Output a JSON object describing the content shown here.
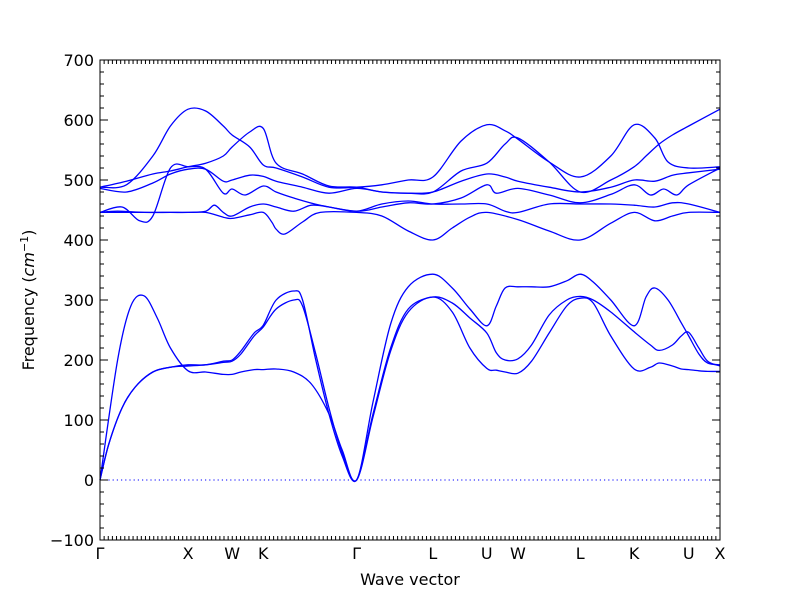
{
  "chart_data": {
    "type": "line",
    "xlabel": "Wave vector",
    "ylabel": "Frequency (",
    "ylabel_unit": "cm",
    "ylabel_exp": "−1",
    "ylabel_close": ")",
    "ylim": [
      -100,
      700
    ],
    "y_ticks": [
      -100,
      0,
      100,
      200,
      300,
      400,
      500,
      600,
      700
    ],
    "x_ticks": [
      {
        "label": "Γ",
        "x": 0.0
      },
      {
        "label": "X",
        "x": 1.0
      },
      {
        "label": "W",
        "x": 1.5
      },
      {
        "label": "K",
        "x": 1.854
      },
      {
        "label": "Γ",
        "x": 2.914
      },
      {
        "label": "L",
        "x": 3.78
      },
      {
        "label": "U",
        "x": 4.392
      },
      {
        "label": "W",
        "x": 4.746
      },
      {
        "label": "L",
        "x": 5.453
      },
      {
        "label": "K",
        "x": 6.065
      },
      {
        "label": "U",
        "x": 6.685
      },
      {
        "label": "X",
        "x": 7.04
      }
    ],
    "xlim": [
      0,
      7.04
    ],
    "zero_line": true,
    "series": [
      {
        "values": [
          [
            0,
            0
          ],
          [
            0.1,
            60
          ],
          [
            0.25,
            120
          ],
          [
            0.4,
            155
          ],
          [
            0.6,
            180
          ],
          [
            0.8,
            188
          ],
          [
            1.0,
            192
          ],
          [
            1.2,
            192
          ],
          [
            1.4,
            198
          ],
          [
            1.5,
            200
          ],
          [
            1.6,
            215
          ],
          [
            1.75,
            245
          ],
          [
            1.854,
            258
          ],
          [
            2.0,
            300
          ],
          [
            2.2,
            315
          ],
          [
            2.3,
            300
          ],
          [
            2.45,
            200
          ],
          [
            2.6,
            110
          ],
          [
            2.75,
            40
          ],
          [
            2.914,
            0
          ],
          [
            3.1,
            110
          ],
          [
            3.3,
            220
          ],
          [
            3.5,
            285
          ],
          [
            3.78,
            305
          ],
          [
            4.0,
            295
          ],
          [
            4.2,
            270
          ],
          [
            4.392,
            245
          ],
          [
            4.5,
            212
          ],
          [
            4.6,
            200
          ],
          [
            4.746,
            202
          ],
          [
            4.9,
            225
          ],
          [
            5.1,
            275
          ],
          [
            5.3,
            300
          ],
          [
            5.453,
            306
          ],
          [
            5.6,
            300
          ],
          [
            5.8,
            280
          ],
          [
            6.065,
            247
          ],
          [
            6.25,
            225
          ],
          [
            6.35,
            216
          ],
          [
            6.5,
            225
          ],
          [
            6.6,
            240
          ],
          [
            6.685,
            246
          ],
          [
            6.8,
            220
          ],
          [
            6.9,
            198
          ],
          [
            7.04,
            190
          ]
        ]
      },
      {
        "values": [
          [
            0,
            0
          ],
          [
            0.1,
            60
          ],
          [
            0.25,
            120
          ],
          [
            0.4,
            155
          ],
          [
            0.6,
            180
          ],
          [
            0.8,
            188
          ],
          [
            1.0,
            190
          ],
          [
            1.2,
            192
          ],
          [
            1.4,
            196
          ],
          [
            1.5,
            198
          ],
          [
            1.6,
            210
          ],
          [
            1.75,
            240
          ],
          [
            1.854,
            255
          ],
          [
            2.0,
            285
          ],
          [
            2.2,
            300
          ],
          [
            2.3,
            290
          ],
          [
            2.45,
            210
          ],
          [
            2.6,
            120
          ],
          [
            2.75,
            45
          ],
          [
            2.914,
            0
          ],
          [
            3.1,
            105
          ],
          [
            3.3,
            215
          ],
          [
            3.5,
            280
          ],
          [
            3.78,
            305
          ],
          [
            4.0,
            280
          ],
          [
            4.2,
            220
          ],
          [
            4.392,
            186
          ],
          [
            4.5,
            183
          ],
          [
            4.6,
            180
          ],
          [
            4.746,
            178
          ],
          [
            4.9,
            198
          ],
          [
            5.1,
            245
          ],
          [
            5.3,
            290
          ],
          [
            5.453,
            303
          ],
          [
            5.6,
            295
          ],
          [
            5.8,
            240
          ],
          [
            6.065,
            185
          ],
          [
            6.25,
            188
          ],
          [
            6.35,
            195
          ],
          [
            6.5,
            190
          ],
          [
            6.6,
            185
          ],
          [
            6.685,
            184
          ],
          [
            6.8,
            182
          ],
          [
            6.9,
            181
          ],
          [
            7.04,
            181
          ]
        ]
      },
      {
        "values": [
          [
            0,
            0
          ],
          [
            0.2,
            200
          ],
          [
            0.35,
            290
          ],
          [
            0.5,
            307
          ],
          [
            0.65,
            270
          ],
          [
            0.8,
            220
          ],
          [
            1.0,
            182
          ],
          [
            1.2,
            180
          ],
          [
            1.4,
            176
          ],
          [
            1.5,
            176
          ],
          [
            1.6,
            180
          ],
          [
            1.75,
            184
          ],
          [
            1.854,
            184
          ],
          [
            2.0,
            185
          ],
          [
            2.2,
            180
          ],
          [
            2.4,
            160
          ],
          [
            2.6,
            110
          ],
          [
            2.75,
            50
          ],
          [
            2.914,
            0
          ],
          [
            3.1,
            130
          ],
          [
            3.3,
            260
          ],
          [
            3.5,
            322
          ],
          [
            3.78,
            343
          ],
          [
            4.0,
            320
          ],
          [
            4.2,
            285
          ],
          [
            4.392,
            257
          ],
          [
            4.5,
            290
          ],
          [
            4.6,
            320
          ],
          [
            4.746,
            322
          ],
          [
            4.9,
            322
          ],
          [
            5.1,
            322
          ],
          [
            5.3,
            332
          ],
          [
            5.453,
            343
          ],
          [
            5.6,
            330
          ],
          [
            5.8,
            300
          ],
          [
            6.065,
            257
          ],
          [
            6.2,
            305
          ],
          [
            6.3,
            320
          ],
          [
            6.45,
            300
          ],
          [
            6.6,
            262
          ],
          [
            6.685,
            240
          ],
          [
            6.8,
            210
          ],
          [
            6.9,
            195
          ],
          [
            7.04,
            192
          ]
        ]
      },
      {
        "values": [
          [
            0,
            446
          ],
          [
            0.2,
            446
          ],
          [
            0.5,
            446
          ],
          [
            0.8,
            446
          ],
          [
            1.0,
            446
          ],
          [
            1.2,
            446
          ],
          [
            1.4,
            438
          ],
          [
            1.5,
            436
          ],
          [
            1.7,
            442
          ],
          [
            1.854,
            446
          ],
          [
            1.95,
            430
          ],
          [
            2.0,
            418
          ],
          [
            2.1,
            410
          ],
          [
            2.3,
            430
          ],
          [
            2.5,
            446
          ],
          [
            2.914,
            446
          ],
          [
            3.2,
            440
          ],
          [
            3.5,
            415
          ],
          [
            3.78,
            400
          ],
          [
            4.0,
            420
          ],
          [
            4.2,
            438
          ],
          [
            4.392,
            446
          ],
          [
            4.746,
            434
          ],
          [
            5.1,
            415
          ],
          [
            5.453,
            400
          ],
          [
            5.8,
            428
          ],
          [
            6.065,
            446
          ],
          [
            6.3,
            432
          ],
          [
            6.5,
            440
          ],
          [
            6.685,
            446
          ],
          [
            7.04,
            446
          ]
        ]
      },
      {
        "values": [
          [
            0,
            446
          ],
          [
            0.2,
            448
          ],
          [
            0.5,
            446
          ],
          [
            0.8,
            446
          ],
          [
            1.0,
            446
          ],
          [
            1.2,
            448
          ],
          [
            1.3,
            458
          ],
          [
            1.4,
            446
          ],
          [
            1.5,
            440
          ],
          [
            1.7,
            455
          ],
          [
            1.854,
            460
          ],
          [
            2.0,
            455
          ],
          [
            2.2,
            448
          ],
          [
            2.4,
            458
          ],
          [
            2.6,
            455
          ],
          [
            2.914,
            448
          ],
          [
            3.2,
            460
          ],
          [
            3.5,
            465
          ],
          [
            3.78,
            460
          ],
          [
            4.1,
            460
          ],
          [
            4.392,
            460
          ],
          [
            4.6,
            448
          ],
          [
            4.746,
            446
          ],
          [
            5.1,
            460
          ],
          [
            5.453,
            460
          ],
          [
            5.8,
            460
          ],
          [
            6.065,
            458
          ],
          [
            6.3,
            455
          ],
          [
            6.5,
            462
          ],
          [
            6.685,
            460
          ],
          [
            7.04,
            446
          ]
        ]
      },
      {
        "values": [
          [
            0,
            446
          ],
          [
            0.25,
            455
          ],
          [
            0.45,
            432
          ],
          [
            0.6,
            440
          ],
          [
            0.8,
            520
          ],
          [
            1.0,
            522
          ],
          [
            1.2,
            518
          ],
          [
            1.4,
            478
          ],
          [
            1.5,
            485
          ],
          [
            1.65,
            475
          ],
          [
            1.854,
            490
          ],
          [
            2.0,
            480
          ],
          [
            2.2,
            470
          ],
          [
            2.5,
            458
          ],
          [
            2.914,
            448
          ],
          [
            3.2,
            455
          ],
          [
            3.5,
            462
          ],
          [
            3.78,
            460
          ],
          [
            4.1,
            470
          ],
          [
            4.392,
            492
          ],
          [
            4.5,
            478
          ],
          [
            4.746,
            486
          ],
          [
            5.1,
            475
          ],
          [
            5.453,
            462
          ],
          [
            5.8,
            476
          ],
          [
            6.065,
            492
          ],
          [
            6.25,
            475
          ],
          [
            6.4,
            485
          ],
          [
            6.55,
            475
          ],
          [
            6.685,
            492
          ],
          [
            7.04,
            520
          ]
        ]
      },
      {
        "values": [
          [
            0,
            486
          ],
          [
            0.3,
            480
          ],
          [
            0.6,
            495
          ],
          [
            0.8,
            510
          ],
          [
            1.0,
            518
          ],
          [
            1.2,
            518
          ],
          [
            1.4,
            498
          ],
          [
            1.5,
            500
          ],
          [
            1.7,
            508
          ],
          [
            1.854,
            506
          ],
          [
            2.0,
            498
          ],
          [
            2.3,
            488
          ],
          [
            2.6,
            478
          ],
          [
            2.914,
            486
          ],
          [
            3.2,
            480
          ],
          [
            3.5,
            478
          ],
          [
            3.78,
            480
          ],
          [
            4.1,
            498
          ],
          [
            4.392,
            510
          ],
          [
            4.6,
            505
          ],
          [
            4.746,
            498
          ],
          [
            5.1,
            488
          ],
          [
            5.453,
            480
          ],
          [
            5.8,
            488
          ],
          [
            6.065,
            500
          ],
          [
            6.3,
            498
          ],
          [
            6.5,
            508
          ],
          [
            6.685,
            512
          ],
          [
            7.04,
            518
          ]
        ]
      },
      {
        "values": [
          [
            0,
            488
          ],
          [
            0.3,
            498
          ],
          [
            0.6,
            510
          ],
          [
            0.8,
            515
          ],
          [
            1.0,
            522
          ],
          [
            1.2,
            528
          ],
          [
            1.4,
            540
          ],
          [
            1.5,
            555
          ],
          [
            1.7,
            580
          ],
          [
            1.854,
            586
          ],
          [
            2.0,
            528
          ],
          [
            2.3,
            510
          ],
          [
            2.6,
            490
          ],
          [
            2.914,
            488
          ],
          [
            3.2,
            480
          ],
          [
            3.5,
            478
          ],
          [
            3.78,
            480
          ],
          [
            4.1,
            515
          ],
          [
            4.392,
            528
          ],
          [
            4.6,
            560
          ],
          [
            4.746,
            570
          ],
          [
            5.1,
            530
          ],
          [
            5.453,
            480
          ],
          [
            5.8,
            500
          ],
          [
            6.065,
            522
          ],
          [
            6.2,
            540
          ],
          [
            6.35,
            560
          ],
          [
            6.5,
            575
          ],
          [
            6.685,
            590
          ],
          [
            7.04,
            618
          ]
        ]
      },
      {
        "values": [
          [
            0,
            488
          ],
          [
            0.3,
            492
          ],
          [
            0.6,
            540
          ],
          [
            0.8,
            590
          ],
          [
            1.0,
            618
          ],
          [
            1.2,
            615
          ],
          [
            1.4,
            590
          ],
          [
            1.5,
            575
          ],
          [
            1.7,
            555
          ],
          [
            1.854,
            525
          ],
          [
            2.0,
            520
          ],
          [
            2.3,
            505
          ],
          [
            2.6,
            488
          ],
          [
            2.914,
            488
          ],
          [
            3.2,
            492
          ],
          [
            3.5,
            500
          ],
          [
            3.78,
            505
          ],
          [
            4.1,
            565
          ],
          [
            4.392,
            592
          ],
          [
            4.6,
            582
          ],
          [
            4.746,
            568
          ],
          [
            5.1,
            530
          ],
          [
            5.453,
            505
          ],
          [
            5.8,
            540
          ],
          [
            6.065,
            592
          ],
          [
            6.3,
            570
          ],
          [
            6.45,
            530
          ],
          [
            6.685,
            520
          ],
          [
            7.04,
            522
          ]
        ]
      }
    ]
  }
}
